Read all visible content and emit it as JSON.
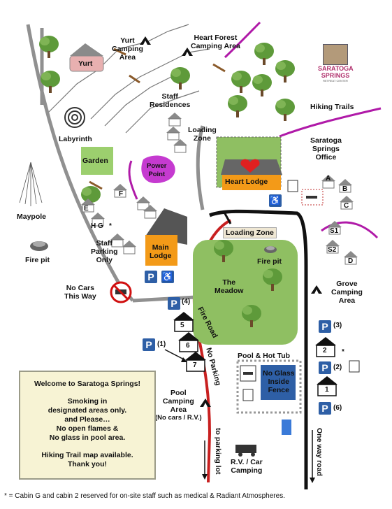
{
  "places": {
    "yurt": "Yurt",
    "yurt_camping": [
      "Yurt",
      "Camping",
      "Area"
    ],
    "heart_forest": [
      "Heart Forest",
      "Camping Area"
    ],
    "logo": [
      "SARATOGA",
      "SPRINGS",
      "RETREAT CENTER"
    ],
    "staff_residences": [
      "Staff",
      "Residences"
    ],
    "hiking_trails": "Hiking Trails",
    "labyrinth": "Labyrinth",
    "loading_zone_top": [
      "Loading",
      "Zone"
    ],
    "garden": "Garden",
    "power_point": [
      "Power",
      "Point"
    ],
    "heart_lodge": "Heart Lodge",
    "office": [
      "Saratoga",
      "Springs",
      "Office"
    ],
    "maypole": "Maypole",
    "fire_pit_left": "Fire pit",
    "staff_parking": [
      "Staff",
      "Parking",
      "Only"
    ],
    "main_lodge": [
      "Main",
      "Lodge"
    ],
    "loading_zone": "Loading Zone",
    "fire_pit_meadow": "Fire pit",
    "meadow": [
      "The",
      "Meadow"
    ],
    "grove": [
      "Grove",
      "Camping",
      "Area"
    ],
    "no_cars": [
      "No Cars",
      "This Way"
    ],
    "fire_road": "Fire Road",
    "no_parking": "No Parking",
    "pool_hot_tub": "Pool & Hot Tub",
    "no_glass": [
      "No Glass",
      "Inside",
      "Fence"
    ],
    "pool_camping": [
      "Pool",
      "Camping",
      "Area",
      "(No cars / R.V.)"
    ],
    "to_parking_lot": "to parking lot",
    "rv_camping": [
      "R.V. / Car",
      "Camping"
    ],
    "one_way": "One way road"
  },
  "cabins": [
    "A",
    "B",
    "C",
    "S1",
    "S2",
    "D",
    "E",
    "F",
    "H G",
    "5",
    "6",
    "7",
    "2",
    "1"
  ],
  "marks": {
    "star": "*",
    "p": "P",
    "p4": "(4)",
    "p1": "(1)",
    "p3": "(3)",
    "p2": "(2)",
    "p6": "(6)"
  },
  "welcome": [
    "Welcome to  Saratoga Springs!",
    "Smoking in",
    "designated areas only.",
    "and Please…",
    "No open flames &",
    "No glass in pool area.",
    "Hiking Trail map available.",
    "Thank you!"
  ],
  "footnote": "* = Cabin G and cabin 2 reserved for on-site staff such as medical & Radiant Atmospheres.",
  "icons": [
    "tent-icon",
    "tree-icon",
    "cabin-icon",
    "heart-icon",
    "wheelchair-icon",
    "no-smoking-icon",
    "smoking-area-icon",
    "no-cars-icon",
    "rv-icon",
    "fire-pit-icon",
    "maypole-icon",
    "labyrinth-icon"
  ],
  "colors": {
    "trail": "#b01aa8",
    "road": "#8a8a8a",
    "fire_road": "#c82020",
    "one_way": "#111111",
    "meadow": "#8fbf62",
    "garden": "#9ccf6e",
    "lodge": "#f39a18",
    "power_point": "#c53ad0",
    "parking": "#2e5fa6"
  }
}
